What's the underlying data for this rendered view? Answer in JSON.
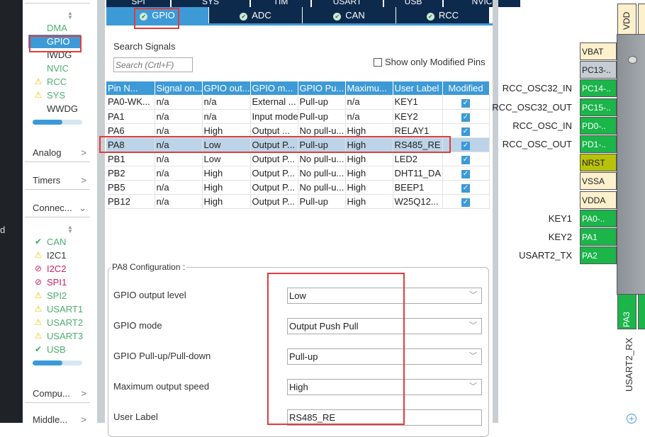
{
  "left_strip": {
    "text": "d"
  },
  "sidebar": {
    "system_items": [
      {
        "label": "DMA",
        "status": "none",
        "color": "green"
      },
      {
        "label": "GPIO",
        "status": "selected",
        "color": "white"
      },
      {
        "label": "IWDG",
        "status": "none",
        "color": "dark"
      },
      {
        "label": "NVIC",
        "status": "none",
        "color": "green"
      },
      {
        "label": "RCC",
        "status": "warning",
        "color": "green"
      },
      {
        "label": "SYS",
        "status": "warning",
        "color": "green"
      },
      {
        "label": "WWDG",
        "status": "none",
        "color": "dark"
      }
    ],
    "categories": {
      "analog": "Analog",
      "timers": "Timers",
      "connectivity": "Connec...",
      "computing": "Compu...",
      "middleware": "Middle..."
    },
    "connectivity_items": [
      {
        "label": "CAN",
        "status": "ok",
        "color": "green"
      },
      {
        "label": "I2C1",
        "status": "warning",
        "color": "dark"
      },
      {
        "label": "I2C2",
        "status": "disabled",
        "color": "pink"
      },
      {
        "label": "SPI1",
        "status": "disabled",
        "color": "pink"
      },
      {
        "label": "SPI2",
        "status": "warning",
        "color": "green"
      },
      {
        "label": "USART1",
        "status": "warning",
        "color": "green"
      },
      {
        "label": "USART2",
        "status": "warning",
        "color": "green"
      },
      {
        "label": "USART3",
        "status": "warning",
        "color": "green"
      },
      {
        "label": "USB",
        "status": "ok",
        "color": "green"
      }
    ],
    "scroll_fraction": 0.6
  },
  "tabs": {
    "row1": [
      "SPI",
      "SYS",
      "TIM",
      "USART",
      "USB",
      "NVIC"
    ],
    "row2": [
      "GPIO",
      "ADC",
      "CAN",
      "RCC"
    ],
    "selected": "GPIO"
  },
  "search": {
    "label": "Search Signals",
    "placeholder": "Search (Crtl+F)",
    "show_modified_label": "Show only Modified Pins",
    "show_modified_checked": false
  },
  "table": {
    "headers": [
      "Pin N...",
      "Signal on...",
      "GPIO out...",
      "GPIO m...",
      "GPIO Pu...",
      "Maximu...",
      "User Label",
      "Modified"
    ],
    "rows": [
      [
        "PA0-WK...",
        "n/a",
        "n/a",
        "External ...",
        "Pull-up",
        "n/a",
        "KEY1",
        true
      ],
      [
        "PA1",
        "n/a",
        "n/a",
        "Input mode",
        "Pull-up",
        "n/a",
        "KEY2",
        true
      ],
      [
        "PA6",
        "n/a",
        "High",
        "Output ...",
        "No pull-u...",
        "High",
        "RELAY1",
        true
      ],
      [
        "PA8",
        "n/a",
        "Low",
        "Output P...",
        "Pull-up",
        "High",
        "RS485_RE",
        true
      ],
      [
        "PB1",
        "n/a",
        "Low",
        "Output P...",
        "No pull-u...",
        "High",
        "LED2",
        true
      ],
      [
        "PB2",
        "n/a",
        "High",
        "Output P...",
        "No pull-u...",
        "High",
        "DHT11_DA",
        true
      ],
      [
        "PB5",
        "n/a",
        "High",
        "Output P...",
        "No pull-u...",
        "High",
        "BEEP1",
        true
      ],
      [
        "PB12",
        "n/a",
        "High",
        "Output P...",
        "Pull-up",
        "High",
        "W25Q12...",
        true
      ]
    ],
    "selected_row": 3
  },
  "config": {
    "title": "PA8 Configuration :",
    "fields": [
      {
        "label": "GPIO output level",
        "value": "Low"
      },
      {
        "label": "GPIO mode",
        "value": "Output Push Pull"
      },
      {
        "label": "GPIO Pull-up/Pull-down",
        "value": "Pull-up"
      },
      {
        "label": "Maximum output speed",
        "value": "High"
      },
      {
        "label": "User Label",
        "value": "RS485_RE"
      }
    ]
  },
  "chip": {
    "top_pin": "VDD",
    "left_pins": [
      {
        "name": "VBAT",
        "type": "power",
        "signal": ""
      },
      {
        "name": "PC13-..",
        "type": "gray",
        "signal": ""
      },
      {
        "name": "PC14-..",
        "type": "green",
        "signal": "RCC_OSC32_IN"
      },
      {
        "name": "PC15-..",
        "type": "green",
        "signal": "RCC_OSC32_OUT"
      },
      {
        "name": "PD0-..",
        "type": "green",
        "signal": "RCC_OSC_IN"
      },
      {
        "name": "PD1-..",
        "type": "green",
        "signal": "RCC_OSC_OUT"
      },
      {
        "name": "NRST",
        "type": "nrst",
        "signal": ""
      },
      {
        "name": "VSSA",
        "type": "power",
        "signal": ""
      },
      {
        "name": "VDDA",
        "type": "power",
        "signal": ""
      },
      {
        "name": "PA0-..",
        "type": "green",
        "signal": "KEY1"
      },
      {
        "name": "PA1",
        "type": "green",
        "signal": "KEY2"
      },
      {
        "name": "PA2",
        "type": "green",
        "signal": "USART2_TX"
      }
    ],
    "bottom_pin": {
      "name": "PA3",
      "signal": "USART2_RX"
    }
  }
}
